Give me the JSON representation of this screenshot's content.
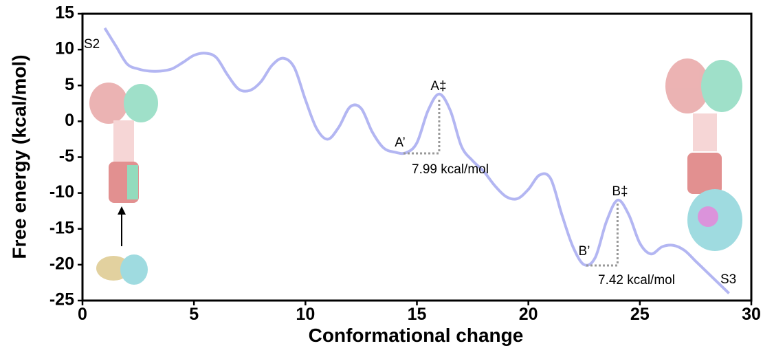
{
  "chart_data": {
    "type": "line",
    "x_label": "Conformational change",
    "y_label": "Free energy (kcal/mol)",
    "x": [
      1,
      1.5,
      2,
      2.5,
      3,
      3.5,
      4,
      4.5,
      5,
      5.5,
      6,
      6.5,
      7,
      7.5,
      8,
      8.5,
      9,
      9.5,
      10,
      10.5,
      11,
      11.5,
      12,
      12.5,
      13,
      13.5,
      14,
      14.5,
      15,
      15.5,
      16,
      16.5,
      17,
      17.5,
      18,
      18.5,
      19,
      19.5,
      20,
      20.5,
      21,
      21.5,
      22,
      22.5,
      23,
      23.5,
      24,
      24.5,
      25,
      25.5,
      26,
      26.5,
      27,
      27.5,
      28,
      28.5,
      29
    ],
    "series": [
      {
        "color": "#b3b6f2",
        "values": [
          13,
          10.5,
          8,
          7.3,
          7,
          7,
          7.3,
          8.2,
          9.2,
          9.5,
          8.9,
          6.5,
          4.5,
          4.3,
          5.5,
          7.8,
          8.8,
          7.5,
          3,
          -1,
          -2.5,
          -0.8,
          2,
          1.8,
          -1.5,
          -3.7,
          -4.3,
          -4.4,
          -3,
          1.5,
          3.8,
          1.5,
          -3.5,
          -5.5,
          -7,
          -9,
          -10.5,
          -10.8,
          -9.5,
          -7.5,
          -8,
          -13,
          -17.5,
          -20,
          -19,
          -14,
          -11,
          -13,
          -17,
          -18.5,
          -17.5,
          -17.3,
          -18,
          -19.5,
          -21,
          -22.5,
          -24
        ]
      }
    ],
    "xlim": [
      0,
      30
    ],
    "xticks": [
      0,
      5,
      10,
      15,
      20,
      25,
      30
    ],
    "ylim": [
      -25,
      15
    ],
    "yticks": [
      -25,
      -20,
      -15,
      -10,
      -5,
      0,
      5,
      10,
      15
    ],
    "annotations": [
      "S2",
      "S3",
      "A‡",
      "A’",
      "B‡",
      "B’",
      "7.99 kcal/mol",
      "7.42 kcal/mol"
    ]
  }
}
